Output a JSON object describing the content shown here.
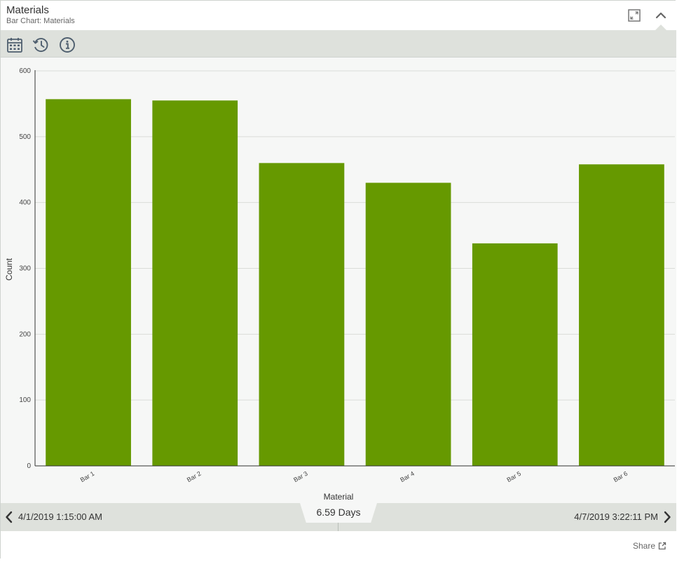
{
  "header": {
    "title": "Materials",
    "subtitle": "Bar Chart: Materials"
  },
  "icons": {
    "expand": "expand-icon",
    "collapse": "chevron-up-icon",
    "calendar": "calendar-icon",
    "history": "history-icon",
    "info": "info-icon",
    "prev": "chevron-left-icon",
    "next": "chevron-right-icon",
    "share": "share-icon"
  },
  "chart_data": {
    "type": "bar",
    "categories": [
      "Bar 1",
      "Bar 2",
      "Bar 3",
      "Bar 4",
      "Bar 5",
      "Bar 6"
    ],
    "values": [
      557,
      555,
      460,
      430,
      338,
      458
    ],
    "xlabel": "Material",
    "ylabel": "Count",
    "ylim": [
      0,
      600
    ],
    "yticks": [
      0,
      100,
      200,
      300,
      400,
      500,
      600
    ],
    "grid": true,
    "bar_color": "#669900"
  },
  "timebar": {
    "start": "4/1/2019 1:15:00 AM",
    "end": "4/7/2019 3:22:11 PM",
    "duration": "6.59 Days"
  },
  "footer": {
    "share_label": "Share"
  }
}
